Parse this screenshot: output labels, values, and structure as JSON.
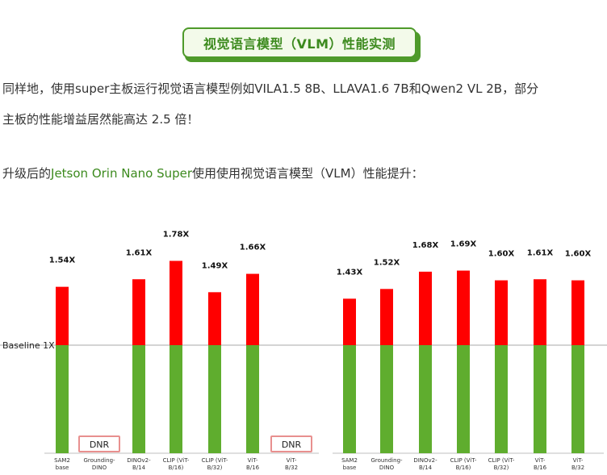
{
  "heading": "视觉语言模型（VLM）性能实测",
  "paragraph1": "同样地，使用super主板运行视觉语言模型例如VILA1.5 8B、LLAVA1.6 7B和Qwen2 VL 2B，部分",
  "paragraph2": "主板的性能增益居然能高达 2.5 倍！",
  "paragraph3": {
    "prefix": "升级后的",
    "highlight": "Jetson Orin Nano Super",
    "suffix": "使用使用视觉语言模型（VLM）性能提升："
  },
  "colors": {
    "gain": "#ff0000",
    "baseline": "#5fad2e",
    "dnr_border": "#e8908f",
    "accent": "#3c8a1e"
  },
  "chart_data": [
    {
      "type": "bar",
      "stacked": true,
      "baseline_label": "Baseline 1X",
      "baseline_value": 1,
      "categories": [
        "SAM2 base",
        "Grounding-DINO",
        "DINOv2-B/14",
        "CLIP (ViT-B/16)",
        "CLIP (ViT-B/32)",
        "ViT-B/16",
        "ViT-B/32"
      ],
      "values": [
        1.54,
        null,
        1.61,
        1.78,
        1.49,
        1.66,
        null
      ],
      "value_labels": [
        "1.54X",
        "DNR",
        "1.61X",
        "1.78X",
        "1.49X",
        "1.66X",
        "DNR"
      ]
    },
    {
      "type": "bar",
      "stacked": true,
      "baseline_value": 1,
      "categories": [
        "SAM2 base",
        "Grounding-DINO",
        "DINOv2-B/14",
        "CLIP (ViT-B/16)",
        "CLIP (ViT-B/32)",
        "ViT-B/16",
        "ViT-B/32"
      ],
      "values": [
        1.43,
        1.52,
        1.68,
        1.69,
        1.6,
        1.61,
        1.6
      ],
      "value_labels": [
        "1.43X",
        "1.52X",
        "1.68X",
        "1.69X",
        "1.60X",
        "1.61X",
        "1.60X"
      ]
    }
  ]
}
